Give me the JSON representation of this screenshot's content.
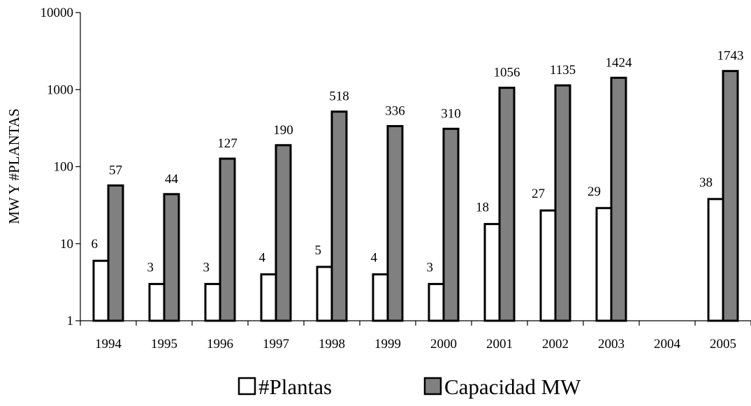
{
  "chart_data": {
    "type": "bar",
    "scale": "log",
    "ylabel": "MW Y #PLANTAS",
    "ylim": [
      1,
      10000
    ],
    "yticks": [
      "1",
      "10",
      "100",
      "1000",
      "10000"
    ],
    "categories": [
      "1994",
      "1995",
      "1996",
      "1997",
      "1998",
      "1999",
      "2000",
      "2001",
      "2002",
      "2003",
      "2004",
      "2005"
    ],
    "series": [
      {
        "name": "#Plantas",
        "color": "#ffffff",
        "values": [
          6,
          3,
          3,
          4,
          5,
          4,
          3,
          18,
          27,
          29,
          null,
          38
        ]
      },
      {
        "name": "Capacidad MW",
        "color": "#808080",
        "values": [
          57,
          44,
          127,
          190,
          518,
          336,
          310,
          1056,
          1135,
          1424,
          null,
          1743
        ]
      }
    ],
    "legend": "bottom",
    "grid": false
  }
}
